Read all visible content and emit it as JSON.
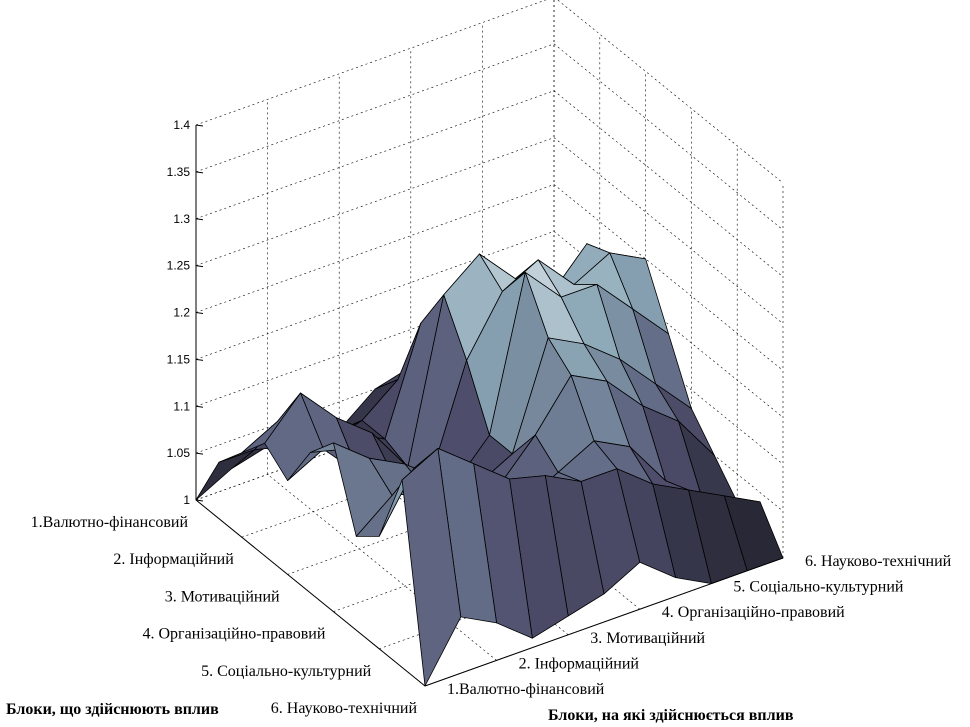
{
  "chart_data": {
    "type": "surface",
    "title": "",
    "xlabel": "Блоки, що здійснюють вплив",
    "ylabel": "Блоки, на які здійснюється вплив",
    "zlabel": "",
    "zlim": [
      1,
      1.4
    ],
    "z_ticks": [
      "1",
      "1.05",
      "1.1",
      "1.15",
      "1.2",
      "1.25",
      "1.3",
      "1.35",
      "1.4"
    ],
    "x_categories": [
      "1.Валютно-фінансовий",
      "2. Інформаційний",
      "3. Мотиваційний",
      "4. Організаційно-правовий",
      "5. Соціально-культурний",
      "6. Науково-технічний"
    ],
    "y_categories": [
      "1.Валютно-фінансовий",
      "2. Інформаційний",
      "3. Мотиваційний",
      "4. Організаційно-правовий",
      "5. Соціально-культурний",
      "6. Науково-технічний"
    ],
    "grid": true,
    "colormap": "bone",
    "z": [
      [
        1.0,
        1.2,
        1.12,
        1.1,
        1.18,
        1.15,
        1.1,
        1.12,
        1.09,
        1.06,
        1.0
      ],
      [
        1.06,
        1.22,
        1.18,
        1.13,
        1.15,
        1.14,
        1.12,
        1.16,
        1.11,
        1.06,
        1.02
      ],
      [
        1.04,
        1.19,
        1.14,
        1.12,
        1.13,
        1.11,
        1.08,
        1.12,
        1.1,
        1.05,
        1.03
      ],
      [
        1.01,
        1.16,
        1.12,
        1.12,
        1.1,
        1.08,
        1.06,
        1.09,
        1.07,
        1.04,
        1.0
      ],
      [
        1.02,
        1.15,
        1.1,
        1.1,
        1.08,
        1.06,
        1.05,
        1.04,
        1.05,
        1.05,
        1.02
      ],
      [
        1.03,
        1.13,
        1.12,
        1.14,
        1.1,
        1.1,
        1.16,
        1.21,
        1.16,
        1.08,
        1.05
      ],
      [
        1.05,
        1.13,
        1.14,
        1.19,
        1.21,
        1.26,
        1.22,
        1.24,
        1.17,
        1.1,
        1.06
      ],
      [
        1.02,
        1.1,
        1.12,
        1.17,
        1.19,
        1.22,
        1.24,
        1.2,
        1.14,
        1.08,
        1.03
      ],
      [
        1.0,
        1.08,
        1.07,
        1.13,
        1.16,
        1.22,
        1.2,
        1.17,
        1.12,
        1.07,
        1.02
      ],
      [
        1.0,
        1.06,
        1.04,
        1.1,
        1.12,
        1.18,
        1.22,
        1.21,
        1.14,
        1.06,
        1.0
      ],
      [
        1.0,
        1.04,
        1.02,
        1.05,
        1.08,
        1.14,
        1.2,
        1.18,
        1.1,
        1.04,
        1.0
      ]
    ]
  }
}
